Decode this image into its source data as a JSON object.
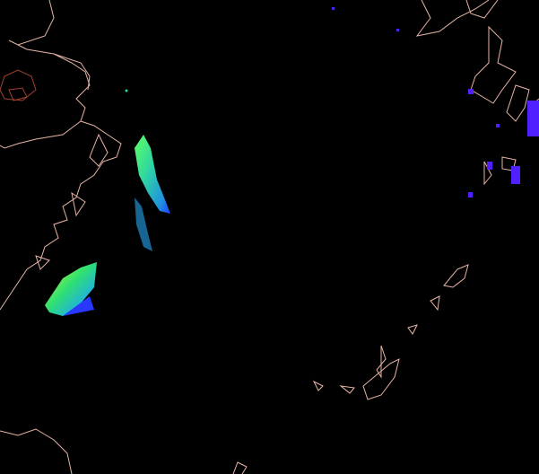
{
  "map": {
    "background_color": "#000000",
    "coastline_color": "#e7b4a6",
    "lake_color": "#a04030",
    "data_colors": {
      "high": "#c8ff40",
      "mid": "#20e080",
      "low": "#20c0e0",
      "lowest": "#3040ff",
      "east_pixels": "#5020ff"
    }
  }
}
